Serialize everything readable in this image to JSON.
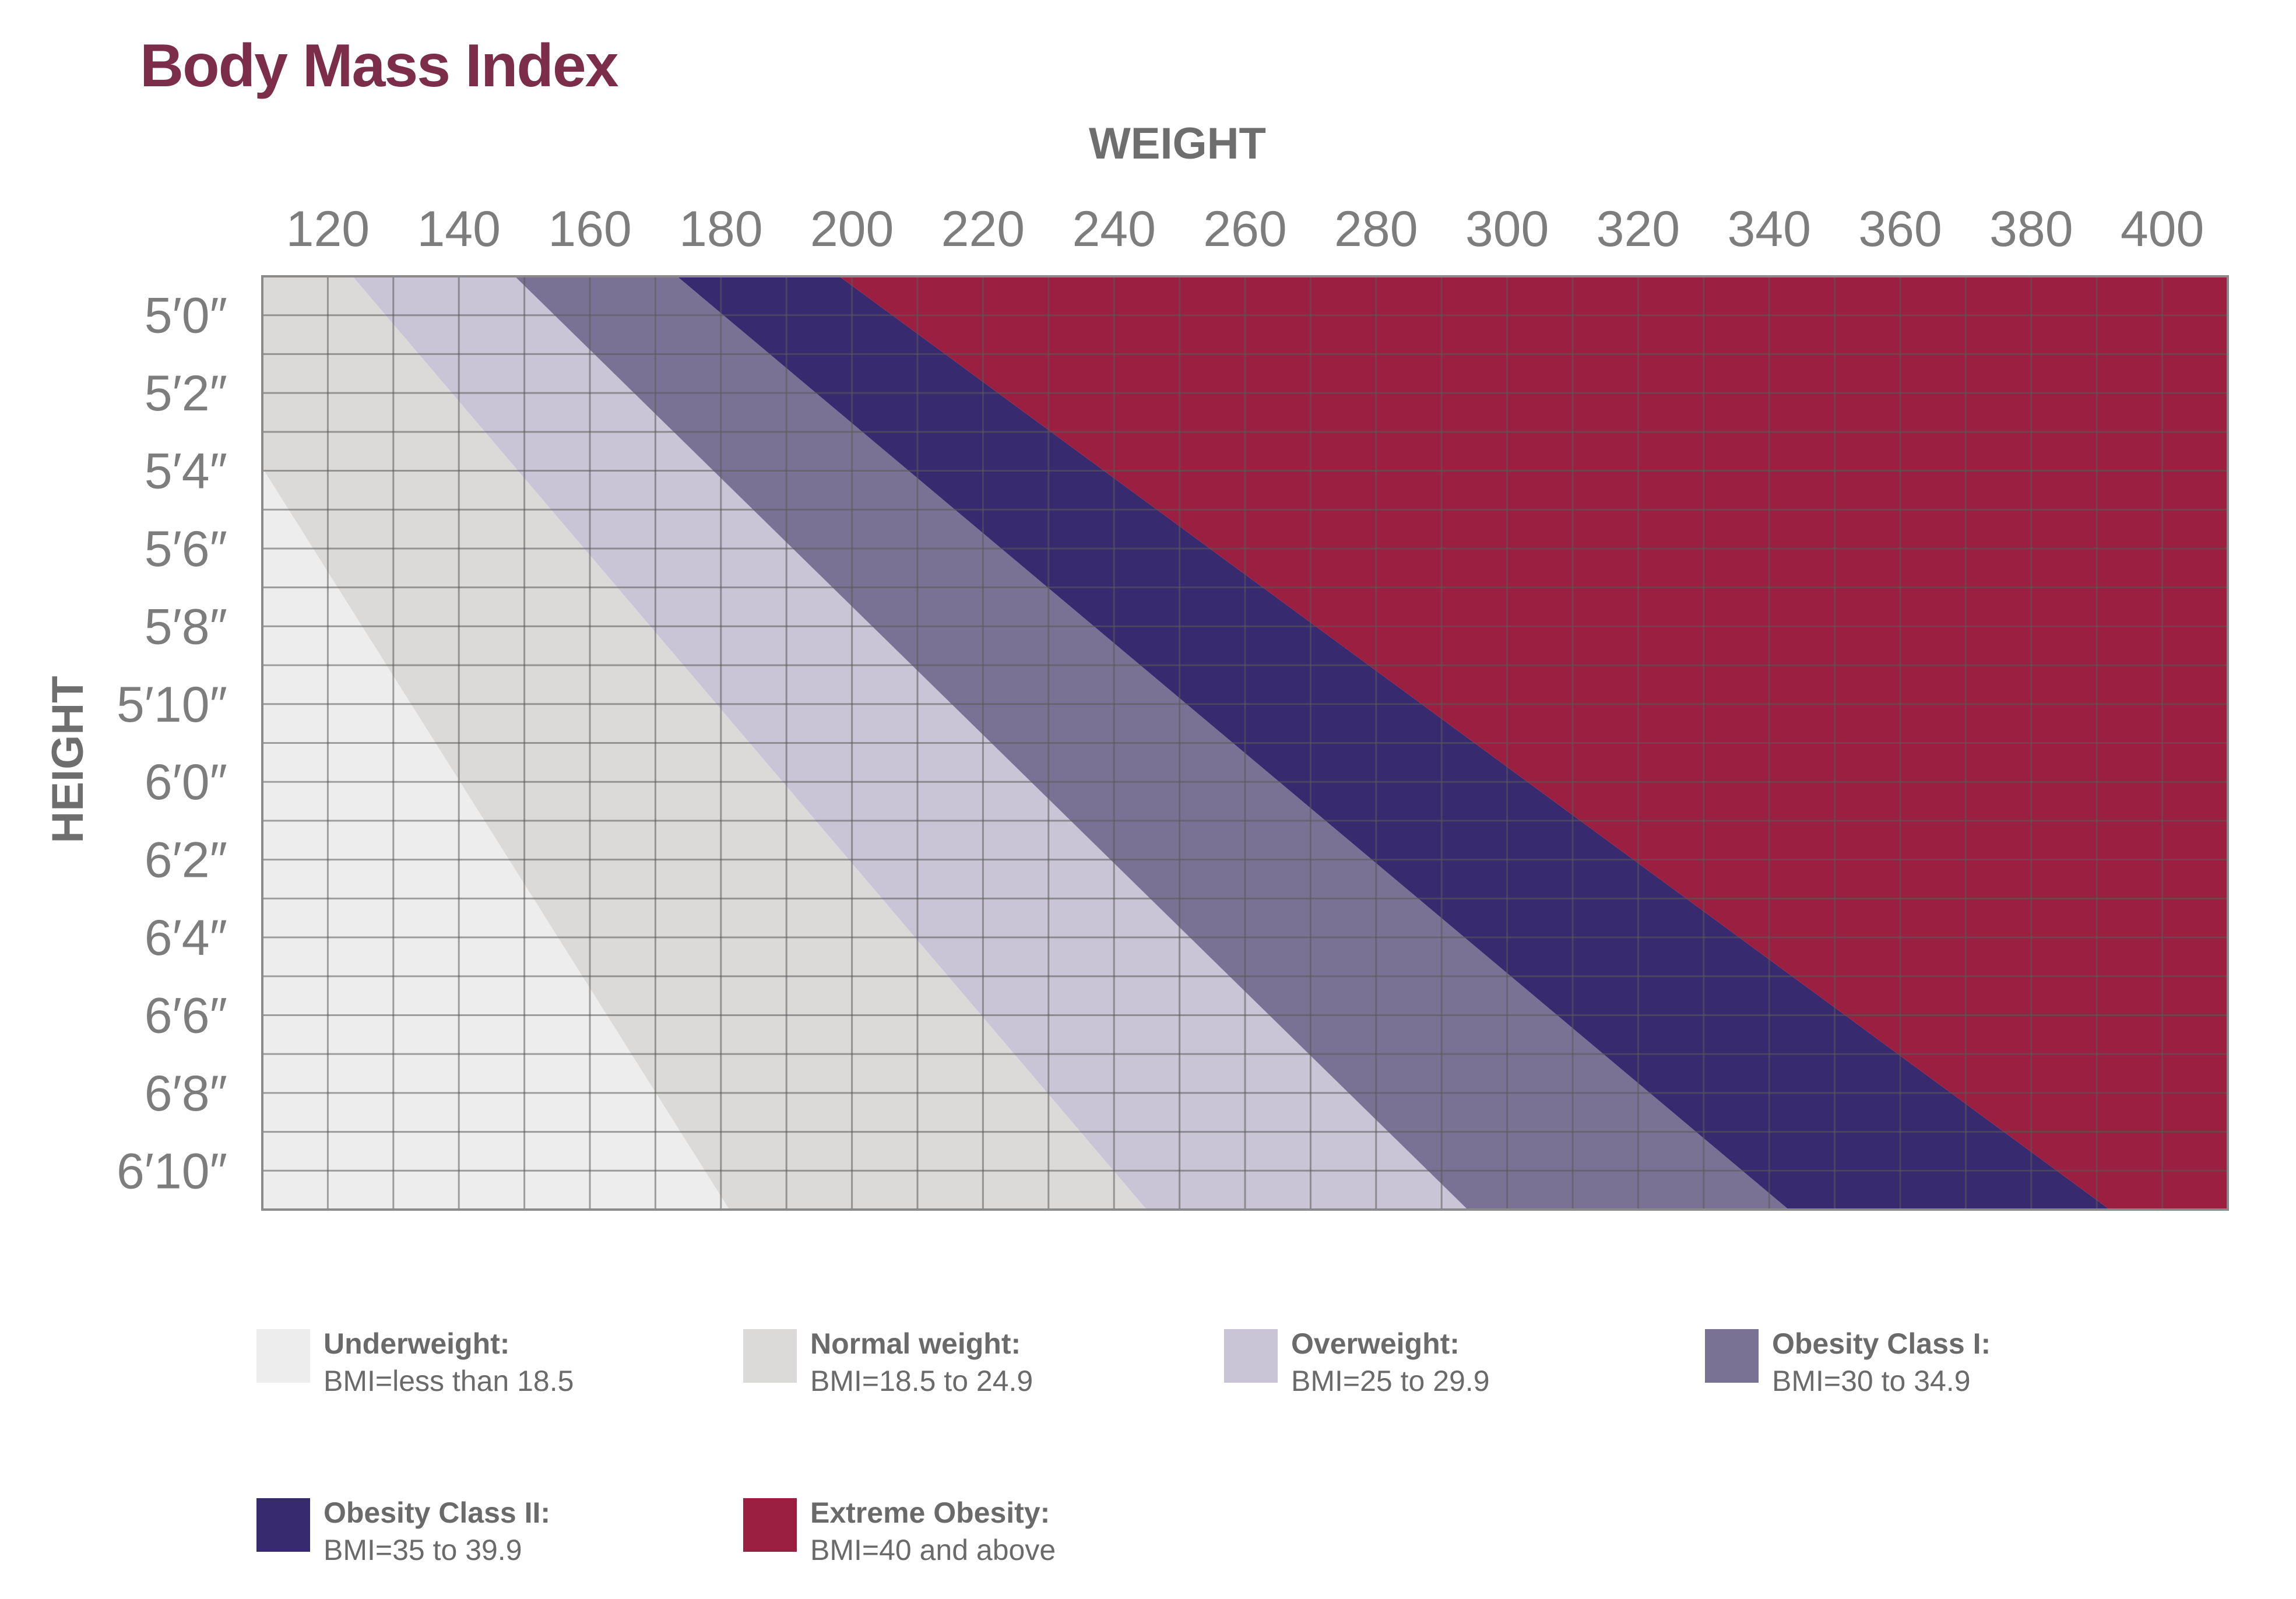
{
  "chart_data": {
    "type": "heatmap",
    "title": "Body Mass Index",
    "xlabel": "WEIGHT",
    "ylabel": "HEIGHT",
    "x_ticks": [
      "120",
      "140",
      "160",
      "180",
      "200",
      "220",
      "240",
      "260",
      "280",
      "300",
      "320",
      "340",
      "360",
      "380",
      "400"
    ],
    "x_tick_values": [
      120,
      140,
      160,
      180,
      200,
      220,
      240,
      260,
      280,
      300,
      320,
      340,
      360,
      380,
      400
    ],
    "y_ticks": [
      "5′0″",
      "5′2″",
      "5′4″",
      "5′6″",
      "5′8″",
      "5′10″",
      "6′0″",
      "6′2″",
      "6′4″",
      "6′6″",
      "6′8″",
      "6′10″"
    ],
    "y_tick_values": [
      60,
      62,
      64,
      66,
      68,
      70,
      72,
      74,
      76,
      78,
      80,
      82
    ],
    "xlim": [
      110,
      410
    ],
    "ylim": [
      59,
      83
    ],
    "grid": true,
    "legend_position": "bottom",
    "categories": [
      {
        "name": "Underweight:",
        "range": "BMI=less than 18.5",
        "bmi_min": 0,
        "bmi_max": 18.5,
        "color": "#ededed"
      },
      {
        "name": "Normal weight:",
        "range": "BMI=18.5 to 24.9",
        "bmi_min": 18.5,
        "bmi_max": 25,
        "color": "#dbdad9"
      },
      {
        "name": "Overweight:",
        "range": "BMI=25 to 29.9",
        "bmi_min": 25,
        "bmi_max": 30,
        "color": "#c9c5d6"
      },
      {
        "name": "Obesity Class I:",
        "range": "BMI=30 to 34.9",
        "bmi_min": 30,
        "bmi_max": 35,
        "color": "#7a7294"
      },
      {
        "name": "Obesity Class II:",
        "range": "BMI=35 to 39.9",
        "bmi_min": 35,
        "bmi_max": 40,
        "color": "#372a6f"
      },
      {
        "name": "Extreme Obesity:",
        "range": "BMI=40 and above",
        "bmi_min": 40,
        "bmi_max": 200,
        "color": "#9b1f40"
      }
    ]
  },
  "colors": {
    "title": "#7b2d4a",
    "axis_text": "#6e6e6e",
    "tick_text": "#7d7d7d",
    "grid_line": "#5a5a5a"
  }
}
